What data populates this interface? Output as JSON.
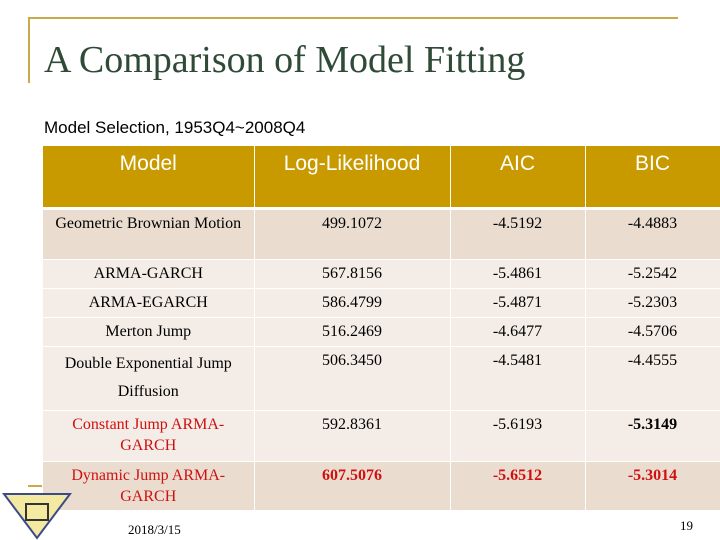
{
  "title": "A Comparison of Model Fitting",
  "subtitle": "Model Selection, 1953Q4~2008Q4",
  "headers": [
    "Model",
    "Log-Likelihood",
    "AIC",
    "BIC"
  ],
  "rows": [
    [
      "Geometric Brownian Motion",
      "499.1072",
      "-4.5192",
      "-4.4883"
    ],
    [
      "ARMA-GARCH",
      "567.8156",
      "-5.4861",
      "-5.2542"
    ],
    [
      "ARMA-EGARCH",
      "586.4799",
      "-5.4871",
      "-5.2303"
    ],
    [
      "Merton Jump",
      "516.2469",
      "-4.6477",
      "-4.5706"
    ],
    [
      "Double Exponential Jump Diffusion",
      "506.3450",
      "-4.5481",
      "-4.4555"
    ],
    [
      "Constant Jump ARMA-GARCH",
      "592.8361",
      "-5.6193",
      "-5.3149"
    ],
    [
      "Dynamic Jump ARMA-GARCH",
      "607.5076",
      "-5.6512",
      "-5.3014"
    ]
  ],
  "colors": {
    "header": "#c99a00",
    "highlight": "#d01010",
    "title": "#2f4a36"
  },
  "footer": {
    "date": "2018/3/15",
    "page": "19"
  }
}
